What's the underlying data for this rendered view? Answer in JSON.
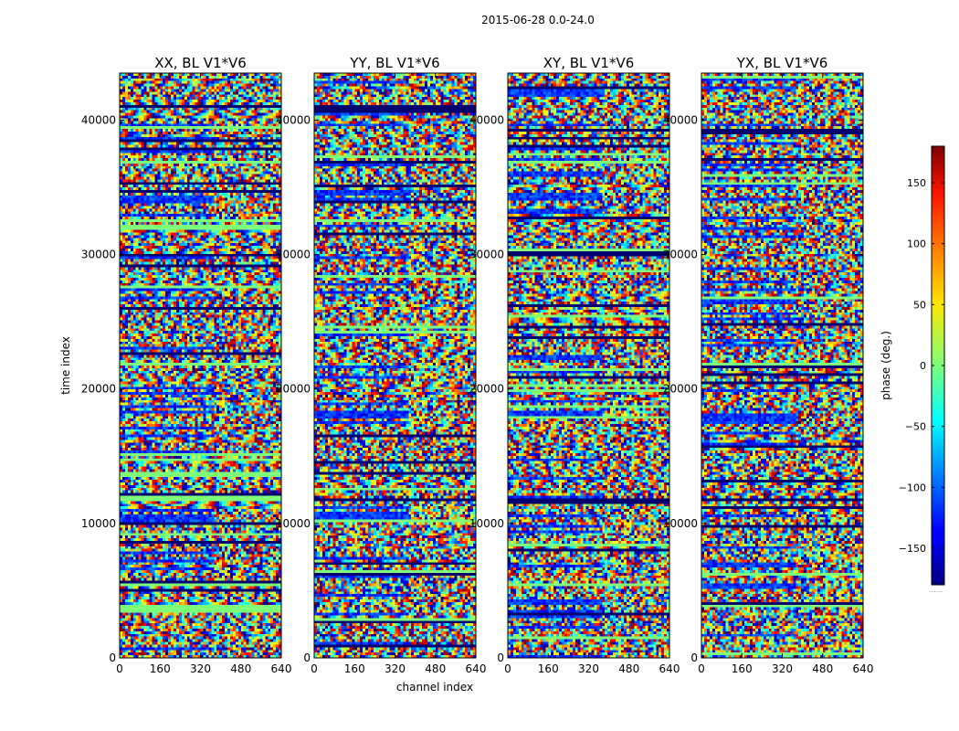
{
  "suptitle": "2015-06-28 0.0-24.0",
  "chart_data": {
    "type": "heatmap",
    "panels": [
      {
        "title": "XX, BL V1*V6"
      },
      {
        "title": "YY, BL V1*V6"
      },
      {
        "title": "XY, BL V1*V6"
      },
      {
        "title": "YX, BL V1*V6"
      }
    ],
    "xlabel": "channel index",
    "ylabel": "time index",
    "xlim": [
      0,
      640
    ],
    "ylim": [
      0,
      43500
    ],
    "xticks": [
      0,
      160,
      320,
      480,
      640
    ],
    "yticks": [
      0,
      10000,
      20000,
      30000,
      40000
    ],
    "colorbar": {
      "label": "phase (deg.)",
      "range": [
        -180,
        180
      ],
      "ticks": [
        150,
        100,
        50,
        0,
        -50,
        -100,
        -150
      ],
      "tick_labels": [
        "150",
        "100",
        "50",
        "0",
        "−50",
        "−100",
        "−150"
      ],
      "colormap": "jet",
      "footer": "......"
    }
  }
}
